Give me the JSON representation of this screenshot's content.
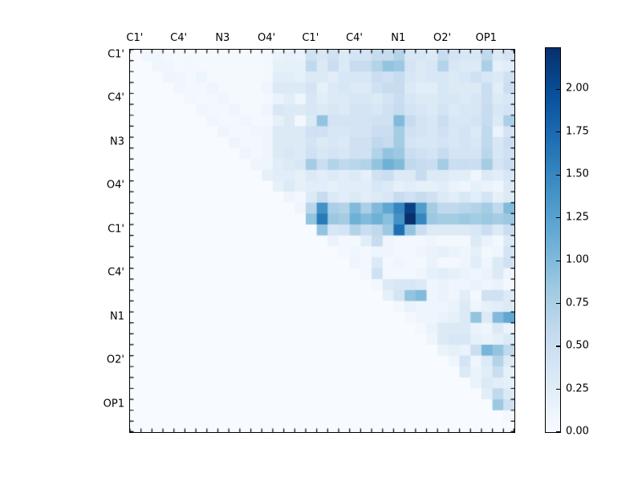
{
  "figure": {
    "background": "#ffffff",
    "frame_color": "#000000",
    "text_color": "#000000"
  },
  "chart_data": {
    "type": "heatmap",
    "title": "",
    "xlabel": "",
    "ylabel": "",
    "n": 35,
    "triangular": "upper",
    "vmin": 0.0,
    "vmax": 2.24,
    "colormap": "Blues",
    "colormap_stops": [
      [
        0,
        "#f7fbff"
      ],
      [
        0.125,
        "#deebf7"
      ],
      [
        0.25,
        "#c6dbef"
      ],
      [
        0.375,
        "#9ecae1"
      ],
      [
        0.5,
        "#6baed6"
      ],
      [
        0.625,
        "#4292c6"
      ],
      [
        0.75,
        "#2171b5"
      ],
      [
        0.875,
        "#08519c"
      ],
      [
        1,
        "#08306b"
      ]
    ],
    "x_tick_labels": [
      "C1'",
      "C4'",
      "N3",
      "O4'",
      "C1'",
      "C4'",
      "N1",
      "O2'",
      "OP1"
    ],
    "y_tick_labels": [
      "C1'",
      "C4'",
      "N3",
      "O4'",
      "C1'",
      "C4'",
      "N1",
      "O2'",
      "OP1"
    ],
    "tick_label_positions": [
      0,
      4,
      8,
      12,
      16,
      20,
      24,
      28,
      32
    ],
    "colorbar_tick_labels": [
      "0.00",
      "0.25",
      "0.50",
      "0.75",
      "1.00",
      "1.25",
      "1.50",
      "1.75",
      "2.00"
    ],
    "colorbar_tick_values": [
      0,
      0.25,
      0.5,
      0.75,
      1.0,
      1.25,
      1.5,
      1.75,
      2.0
    ],
    "matrix": [
      [
        0,
        0.07,
        0.08,
        0.06,
        0.03,
        0.03,
        0.03,
        0.03,
        0.03,
        0.03,
        0.03,
        0.03,
        0.05,
        0.15,
        0.18,
        0.15,
        0.45,
        0.35,
        0.45,
        0.3,
        0.4,
        0.4,
        0.55,
        0.55,
        0.7,
        0.35,
        0.35,
        0.3,
        0.55,
        0.4,
        0.35,
        0.35,
        0.6,
        0.3,
        0.4
      ],
      [
        0,
        0,
        0.1,
        0.08,
        0.04,
        0.06,
        0.04,
        0.03,
        0.03,
        0.03,
        0.03,
        0.03,
        0.05,
        0.2,
        0.2,
        0.2,
        0.6,
        0.3,
        0.5,
        0.3,
        0.55,
        0.55,
        0.7,
        0.9,
        0.85,
        0.4,
        0.3,
        0.35,
        0.7,
        0.35,
        0.3,
        0.3,
        0.75,
        0.2,
        0.25
      ],
      [
        0,
        0,
        0,
        0.1,
        0.08,
        0.05,
        0.12,
        0.04,
        0.03,
        0.03,
        0.03,
        0.03,
        0.05,
        0.25,
        0.25,
        0.2,
        0.3,
        0.3,
        0.25,
        0.35,
        0.35,
        0.35,
        0.5,
        0.45,
        0.55,
        0.35,
        0.3,
        0.35,
        0.35,
        0.3,
        0.35,
        0.45,
        0.35,
        0.3,
        0.45
      ],
      [
        0,
        0,
        0,
        0,
        0.08,
        0.05,
        0.05,
        0.1,
        0.04,
        0.03,
        0.03,
        0.03,
        0.1,
        0.3,
        0.3,
        0.3,
        0.4,
        0.2,
        0.3,
        0.35,
        0.3,
        0.3,
        0.45,
        0.55,
        0.55,
        0.3,
        0.25,
        0.25,
        0.35,
        0.3,
        0.3,
        0.3,
        0.5,
        0.25,
        0.5
      ],
      [
        0,
        0,
        0,
        0,
        0,
        0.06,
        0.04,
        0.05,
        0.1,
        0.04,
        0.03,
        0.03,
        0.05,
        0.15,
        0.25,
        0.1,
        0.35,
        0.25,
        0.3,
        0.3,
        0.35,
        0.35,
        0.3,
        0.4,
        0.5,
        0.35,
        0.3,
        0.3,
        0.35,
        0.35,
        0.3,
        0.35,
        0.5,
        0.3,
        0.35
      ],
      [
        0,
        0,
        0,
        0,
        0,
        0,
        0.08,
        0.05,
        0.05,
        0.1,
        0.04,
        0.03,
        0.1,
        0.35,
        0.3,
        0.3,
        0.35,
        0.3,
        0.35,
        0.3,
        0.4,
        0.4,
        0.35,
        0.45,
        0.55,
        0.4,
        0.35,
        0.3,
        0.4,
        0.3,
        0.35,
        0.35,
        0.55,
        0.35,
        0.4
      ],
      [
        0,
        0,
        0,
        0,
        0,
        0,
        0,
        0.08,
        0.05,
        0.05,
        0.08,
        0.04,
        0.05,
        0.2,
        0.3,
        0.05,
        0.3,
        0.9,
        0.4,
        0.4,
        0.4,
        0.4,
        0.45,
        0.45,
        1,
        0.55,
        0.4,
        0.35,
        0.5,
        0.35,
        0.35,
        0.4,
        0.55,
        0.3,
        0.75
      ],
      [
        0,
        0,
        0,
        0,
        0,
        0,
        0,
        0,
        0.1,
        0.05,
        0.05,
        0.08,
        0.1,
        0.3,
        0.3,
        0.3,
        0.45,
        0.45,
        0.35,
        0.35,
        0.4,
        0.4,
        0.5,
        0.5,
        0.8,
        0.45,
        0.4,
        0.35,
        0.45,
        0.35,
        0.4,
        0.3,
        0.6,
        0.15,
        0.4
      ],
      [
        0,
        0,
        0,
        0,
        0,
        0,
        0,
        0,
        0,
        0.1,
        0.05,
        0.05,
        0.1,
        0.3,
        0.3,
        0.3,
        0.4,
        0.3,
        0.35,
        0.3,
        0.45,
        0.45,
        0.6,
        0.55,
        0.8,
        0.4,
        0.35,
        0.35,
        0.4,
        0.35,
        0.4,
        0.35,
        0.6,
        0.35,
        0.5
      ],
      [
        0,
        0,
        0,
        0,
        0,
        0,
        0,
        0,
        0,
        0,
        0.1,
        0.05,
        0.1,
        0.3,
        0.35,
        0.3,
        0.45,
        0.35,
        0.4,
        0.35,
        0.45,
        0.45,
        0.7,
        0.9,
        0.85,
        0.5,
        0.45,
        0.4,
        0.55,
        0.4,
        0.4,
        0.4,
        0.65,
        0.35,
        0.45
      ],
      [
        0,
        0,
        0,
        0,
        0,
        0,
        0,
        0,
        0,
        0,
        0,
        0.1,
        0.1,
        0.25,
        0.3,
        0.35,
        0.8,
        0.5,
        0.7,
        0.6,
        0.65,
        0.7,
        0.9,
        1.1,
        1,
        0.6,
        0.55,
        0.5,
        0.8,
        0.5,
        0.5,
        0.5,
        0.8,
        0.4,
        0.5
      ],
      [
        0,
        0,
        0,
        0,
        0,
        0,
        0,
        0,
        0,
        0,
        0,
        0,
        0.2,
        0.25,
        0.25,
        0.2,
        0.3,
        0.25,
        0.3,
        0.25,
        0.3,
        0.2,
        0.45,
        0.5,
        0.3,
        0.3,
        0.55,
        0.3,
        0.3,
        0.25,
        0.25,
        0.1,
        0.3,
        0.25,
        0.35
      ],
      [
        0,
        0,
        0,
        0,
        0,
        0,
        0,
        0,
        0,
        0,
        0,
        0,
        0,
        0.2,
        0.3,
        0.2,
        0.25,
        0.25,
        0.2,
        0.25,
        0.25,
        0.25,
        0.35,
        0.3,
        0.2,
        0.25,
        0.2,
        0.2,
        0.25,
        0.15,
        0.1,
        0.2,
        0.15,
        0.1,
        0.3
      ],
      [
        0,
        0,
        0,
        0,
        0,
        0,
        0,
        0,
        0,
        0,
        0,
        0,
        0,
        0,
        0.1,
        0.05,
        0.3,
        0.55,
        0.3,
        0.25,
        0.3,
        0.25,
        0.3,
        0.35,
        0.55,
        0.45,
        0.55,
        0.45,
        0.3,
        0.25,
        0.35,
        0.25,
        0.4,
        0.2,
        0.3
      ],
      [
        0,
        0,
        0,
        0,
        0,
        0,
        0,
        0,
        0,
        0,
        0,
        0,
        0,
        0,
        0,
        0.1,
        0.65,
        1.4,
        0.75,
        0.7,
        1,
        0.75,
        1,
        1.2,
        1.5,
        2.1,
        1.3,
        0.8,
        0.6,
        0.6,
        0.65,
        0.7,
        0.8,
        0.6,
        1
      ],
      [
        0,
        0,
        0,
        0,
        0,
        0,
        0,
        0,
        0,
        0,
        0,
        0,
        0,
        0,
        0,
        0,
        0.9,
        1.6,
        0.85,
        0.8,
        1.1,
        1,
        1.1,
        0.95,
        1.4,
        2.24,
        1.5,
        0.85,
        0.8,
        0.8,
        0.85,
        0.8,
        0.85,
        0.8,
        0.85
      ],
      [
        0,
        0,
        0,
        0,
        0,
        0,
        0,
        0,
        0,
        0,
        0,
        0,
        0,
        0,
        0,
        0,
        0,
        0.9,
        0.35,
        0.4,
        0.7,
        0.5,
        0.6,
        0.85,
        1.7,
        0.9,
        0.5,
        0.3,
        0.3,
        0.3,
        0.3,
        0.35,
        0.5,
        0.3,
        0.5
      ],
      [
        0,
        0,
        0,
        0,
        0,
        0,
        0,
        0,
        0,
        0,
        0,
        0,
        0,
        0,
        0,
        0,
        0,
        0,
        0.15,
        0.05,
        0.05,
        0.25,
        0.55,
        0.1,
        0.05,
        0.05,
        0.05,
        0.1,
        0.05,
        0.05,
        0.05,
        0.3,
        0.15,
        0.05,
        0.3
      ],
      [
        0,
        0,
        0,
        0,
        0,
        0,
        0,
        0,
        0,
        0,
        0,
        0,
        0,
        0,
        0,
        0,
        0,
        0,
        0,
        0.05,
        0.08,
        0.05,
        0.1,
        0.1,
        0.05,
        0.05,
        0.1,
        0.15,
        0.2,
        0.15,
        0.1,
        0.2,
        0.05,
        0.1,
        0.4
      ],
      [
        0,
        0,
        0,
        0,
        0,
        0,
        0,
        0,
        0,
        0,
        0,
        0,
        0,
        0,
        0,
        0,
        0,
        0,
        0,
        0,
        0.1,
        0.05,
        0.3,
        0.05,
        0.1,
        0.05,
        0.05,
        0.15,
        0.05,
        0.05,
        0.1,
        0.25,
        0.1,
        0.3,
        0.45
      ],
      [
        0,
        0,
        0,
        0,
        0,
        0,
        0,
        0,
        0,
        0,
        0,
        0,
        0,
        0,
        0,
        0,
        0,
        0,
        0,
        0,
        0,
        0.05,
        0.45,
        0.05,
        0.05,
        0.05,
        0.1,
        0.2,
        0.25,
        0.2,
        0.15,
        0.1,
        0.15,
        0.3,
        0.1
      ],
      [
        0,
        0,
        0,
        0,
        0,
        0,
        0,
        0,
        0,
        0,
        0,
        0,
        0,
        0,
        0,
        0,
        0,
        0,
        0,
        0,
        0,
        0,
        0.05,
        0.3,
        0.35,
        0.35,
        0.3,
        0.1,
        0.15,
        0.1,
        0.1,
        0.15,
        0.1,
        0.15,
        0.05
      ],
      [
        0,
        0,
        0,
        0,
        0,
        0,
        0,
        0,
        0,
        0,
        0,
        0,
        0,
        0,
        0,
        0,
        0,
        0,
        0,
        0,
        0,
        0,
        0,
        0.2,
        0.4,
        0.9,
        1,
        0.1,
        0.15,
        0.1,
        0.25,
        0.05,
        0.45,
        0.45,
        0.3
      ],
      [
        0,
        0,
        0,
        0,
        0,
        0,
        0,
        0,
        0,
        0,
        0,
        0,
        0,
        0,
        0,
        0,
        0,
        0,
        0,
        0,
        0,
        0,
        0,
        0,
        0.05,
        0.15,
        0.1,
        0.1,
        0.1,
        0.15,
        0.3,
        0.1,
        0.2,
        0.25,
        0.3
      ],
      [
        0,
        0,
        0,
        0,
        0,
        0,
        0,
        0,
        0,
        0,
        0,
        0,
        0,
        0,
        0,
        0,
        0,
        0,
        0,
        0,
        0,
        0,
        0,
        0,
        0,
        0.05,
        0.1,
        0.1,
        0.15,
        0.2,
        0.3,
        0.9,
        0.3,
        1,
        1.2
      ],
      [
        0,
        0,
        0,
        0,
        0,
        0,
        0,
        0,
        0,
        0,
        0,
        0,
        0,
        0,
        0,
        0,
        0,
        0,
        0,
        0,
        0,
        0,
        0,
        0,
        0,
        0,
        0.05,
        0.15,
        0.3,
        0.3,
        0.3,
        0.15,
        0.1,
        0.3,
        0.15
      ],
      [
        0,
        0,
        0,
        0,
        0,
        0,
        0,
        0,
        0,
        0,
        0,
        0,
        0,
        0,
        0,
        0,
        0,
        0,
        0,
        0,
        0,
        0,
        0,
        0,
        0,
        0,
        0,
        0.1,
        0.3,
        0.35,
        0.35,
        0.2,
        0.15,
        0.2,
        0.3
      ],
      [
        0,
        0,
        0,
        0,
        0,
        0,
        0,
        0,
        0,
        0,
        0,
        0,
        0,
        0,
        0,
        0,
        0,
        0,
        0,
        0,
        0,
        0,
        0,
        0,
        0,
        0,
        0,
        0,
        0.15,
        0.2,
        0.15,
        0.5,
        1.05,
        0.9,
        0.6
      ],
      [
        0,
        0,
        0,
        0,
        0,
        0,
        0,
        0,
        0,
        0,
        0,
        0,
        0,
        0,
        0,
        0,
        0,
        0,
        0,
        0,
        0,
        0,
        0,
        0,
        0,
        0,
        0,
        0,
        0,
        0.1,
        0.4,
        0.1,
        0.3,
        0.7,
        0.3
      ],
      [
        0,
        0,
        0,
        0,
        0,
        0,
        0,
        0,
        0,
        0,
        0,
        0,
        0,
        0,
        0,
        0,
        0,
        0,
        0,
        0,
        0,
        0,
        0,
        0,
        0,
        0,
        0,
        0,
        0,
        0,
        0.3,
        0.15,
        0.25,
        0.5,
        0.2
      ],
      [
        0,
        0,
        0,
        0,
        0,
        0,
        0,
        0,
        0,
        0,
        0,
        0,
        0,
        0,
        0,
        0,
        0,
        0,
        0,
        0,
        0,
        0,
        0,
        0,
        0,
        0,
        0,
        0,
        0,
        0,
        0,
        0.15,
        0.3,
        0.25,
        0.2
      ],
      [
        0,
        0,
        0,
        0,
        0,
        0,
        0,
        0,
        0,
        0,
        0,
        0,
        0,
        0,
        0,
        0,
        0,
        0,
        0,
        0,
        0,
        0,
        0,
        0,
        0,
        0,
        0,
        0,
        0,
        0,
        0,
        0,
        0.25,
        0.6,
        0.3
      ],
      [
        0,
        0,
        0,
        0,
        0,
        0,
        0,
        0,
        0,
        0,
        0,
        0,
        0,
        0,
        0,
        0,
        0,
        0,
        0,
        0,
        0,
        0,
        0,
        0,
        0,
        0,
        0,
        0,
        0,
        0,
        0,
        0,
        0,
        0.85,
        0.45
      ],
      [
        0,
        0,
        0,
        0,
        0,
        0,
        0,
        0,
        0,
        0,
        0,
        0,
        0,
        0,
        0,
        0,
        0,
        0,
        0,
        0,
        0,
        0,
        0,
        0,
        0,
        0,
        0,
        0,
        0,
        0,
        0,
        0,
        0,
        0,
        0.05
      ],
      [
        0,
        0,
        0,
        0,
        0,
        0,
        0,
        0,
        0,
        0,
        0,
        0,
        0,
        0,
        0,
        0,
        0,
        0,
        0,
        0,
        0,
        0,
        0,
        0,
        0,
        0,
        0,
        0,
        0,
        0,
        0,
        0,
        0,
        0,
        0
      ]
    ]
  }
}
